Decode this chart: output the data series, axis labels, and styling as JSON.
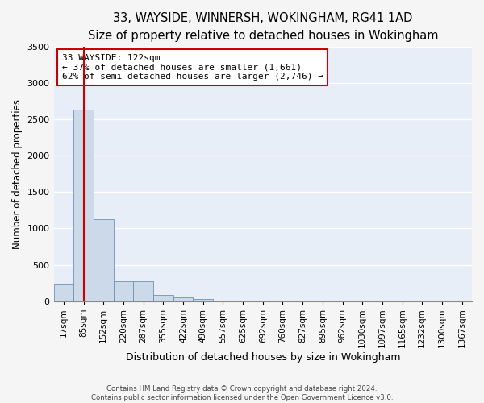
{
  "title": "33, WAYSIDE, WINNERSH, WOKINGHAM, RG41 1AD",
  "subtitle": "Size of property relative to detached houses in Wokingham",
  "xlabel": "Distribution of detached houses by size in Wokingham",
  "ylabel": "Number of detached properties",
  "bar_color": "#ccd9e8",
  "bar_edge_color": "#7090b8",
  "background_color": "#e8eef8",
  "grid_color": "#ffffff",
  "bin_labels": [
    "17sqm",
    "85sqm",
    "152sqm",
    "220sqm",
    "287sqm",
    "355sqm",
    "422sqm",
    "490sqm",
    "557sqm",
    "625sqm",
    "692sqm",
    "760sqm",
    "827sqm",
    "895sqm",
    "962sqm",
    "1030sqm",
    "1097sqm",
    "1165sqm",
    "1232sqm",
    "1300sqm",
    "1367sqm"
  ],
  "bar_heights": [
    240,
    2630,
    1130,
    270,
    270,
    90,
    55,
    30,
    10,
    0,
    0,
    0,
    0,
    0,
    0,
    0,
    0,
    0,
    0,
    0,
    0
  ],
  "red_line_x": 1.0,
  "annotation_text": "33 WAYSIDE: 122sqm\n← 37% of detached houses are smaller (1,661)\n62% of semi-detached houses are larger (2,746) →",
  "annotation_box_color": "#ffffff",
  "annotation_box_edge_color": "#cc0000",
  "red_line_color": "#cc0000",
  "ylim": [
    0,
    3500
  ],
  "yticks": [
    0,
    500,
    1000,
    1500,
    2000,
    2500,
    3000,
    3500
  ],
  "footnote1": "Contains HM Land Registry data © Crown copyright and database right 2024.",
  "footnote2": "Contains public sector information licensed under the Open Government Licence v3.0.",
  "title_fontsize": 10.5,
  "subtitle_fontsize": 9.5,
  "xlabel_fontsize": 9,
  "ylabel_fontsize": 8.5,
  "tick_fontsize": 7.5,
  "ytick_fontsize": 8
}
